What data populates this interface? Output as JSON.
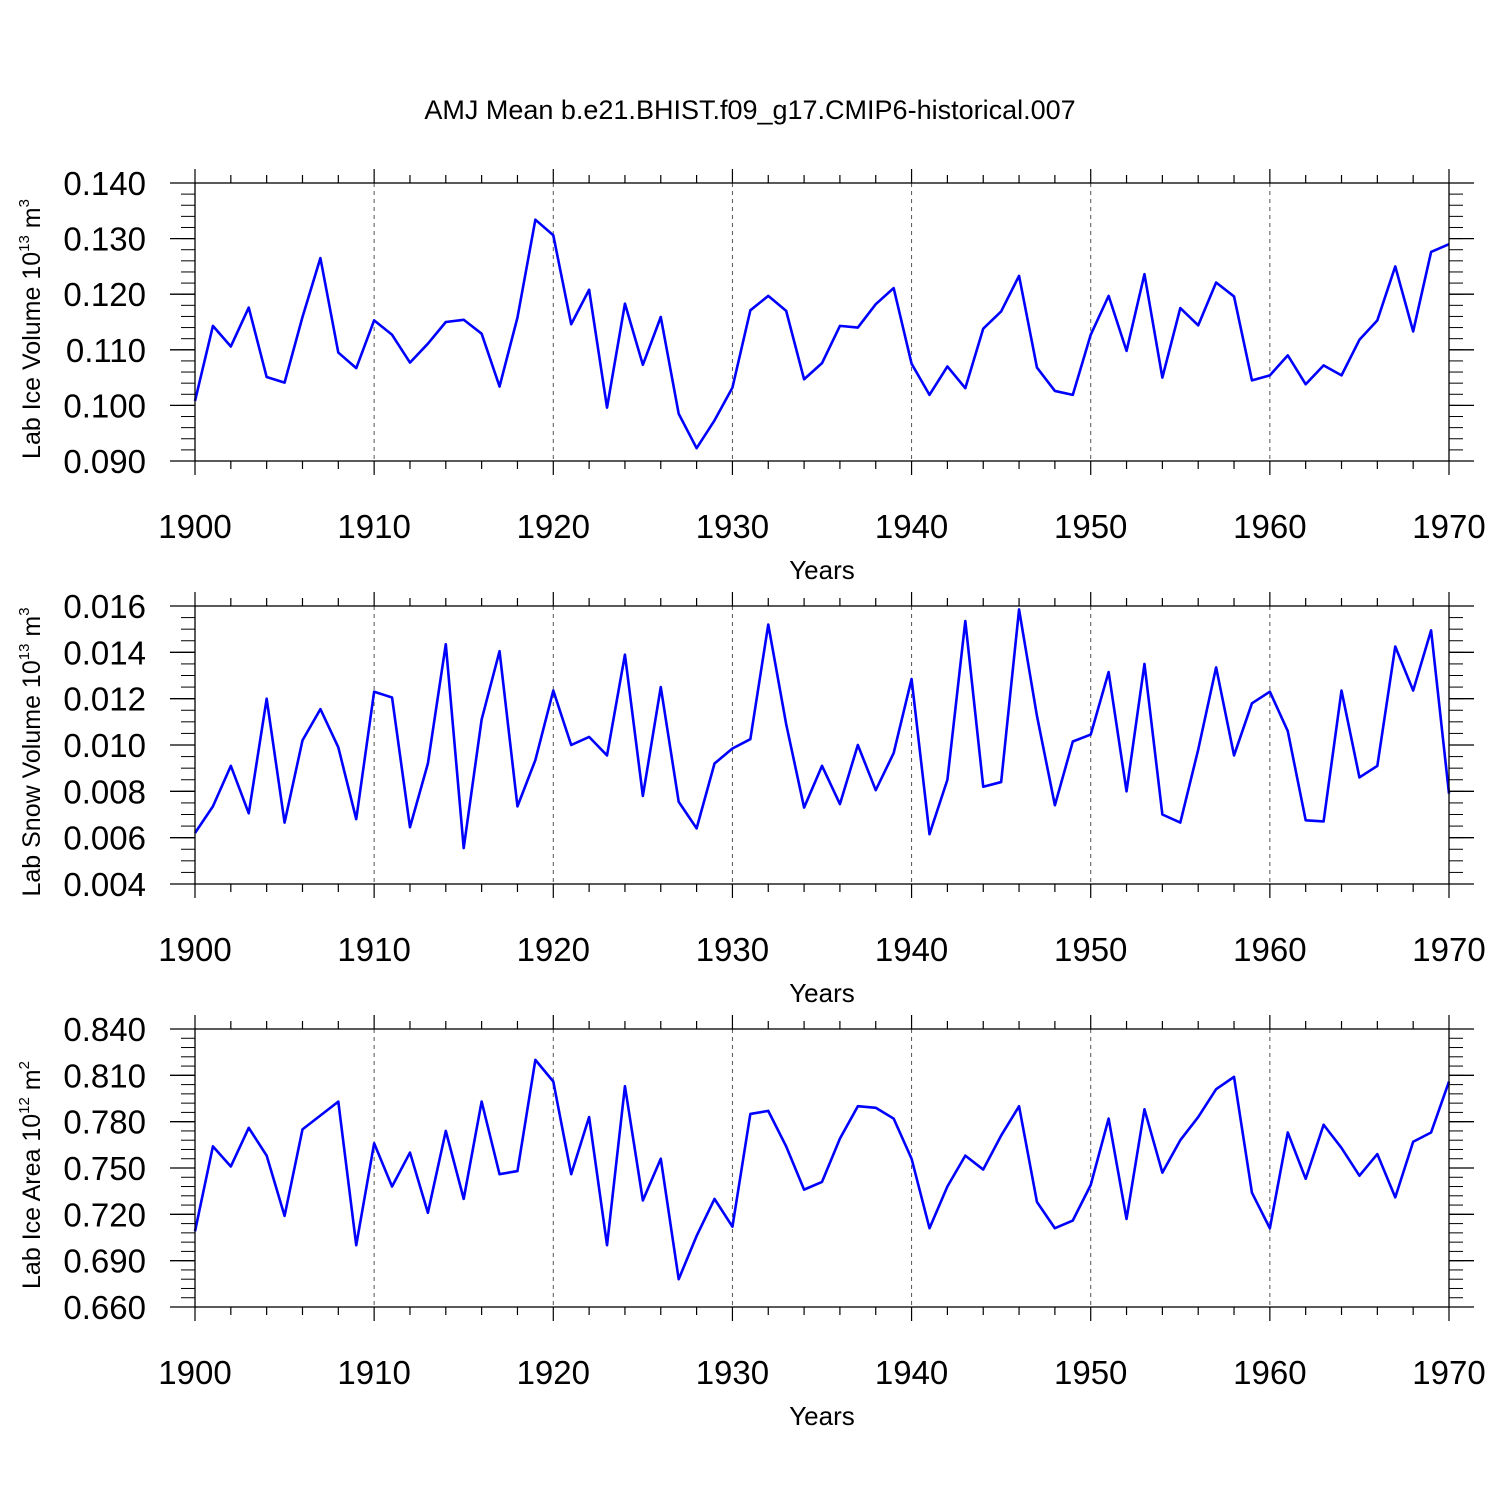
{
  "title": "AMJ Mean b.e21.BHIST.f09_g17.CMIP6-historical.007",
  "colors": {
    "line": "#0000ff",
    "axis": "#000000",
    "grid": "#555555"
  },
  "chart_data": [
    {
      "type": "line",
      "name": "ice-volume",
      "ylabel": {
        "base": "Lab Ice Volume 10",
        "exp": "13",
        "unit": " m",
        "unit_exp": "3"
      },
      "xlabel": "Years",
      "xlim": [
        1900,
        1970
      ],
      "ylim": [
        0.09,
        0.14
      ],
      "x_ticks": [
        "1900",
        "1910",
        "1920",
        "1930",
        "1940",
        "1950",
        "1960",
        "1970"
      ],
      "y_ticks": [
        "0.090",
        "0.100",
        "0.110",
        "0.120",
        "0.130",
        "0.140"
      ],
      "y_minor_step": 0.002,
      "start_year": 1900,
      "values": [
        0.1008,
        0.1143,
        0.1106,
        0.1176,
        0.1051,
        0.1041,
        0.1159,
        0.1265,
        0.1095,
        0.1067,
        0.1153,
        0.1127,
        0.1077,
        0.1111,
        0.115,
        0.1154,
        0.1129,
        0.1034,
        0.1158,
        0.1334,
        0.1306,
        0.1146,
        0.1208,
        0.0996,
        0.1183,
        0.1073,
        0.1159,
        0.0985,
        0.0923,
        0.0973,
        0.1032,
        0.1171,
        0.1197,
        0.117,
        0.1047,
        0.1076,
        0.1143,
        0.114,
        0.1182,
        0.1211,
        0.1075,
        0.1019,
        0.107,
        0.1031,
        0.1138,
        0.1169,
        0.1233,
        0.1068,
        0.1026,
        0.1019,
        0.1127,
        0.1197,
        0.1098,
        0.1236,
        0.105,
        0.1175,
        0.1144,
        0.1221,
        0.1196,
        0.1045,
        0.1054,
        0.109,
        0.1038,
        0.1072,
        0.1054,
        0.1118,
        0.1153,
        0.125,
        0.1133,
        0.1276,
        0.129
      ]
    },
    {
      "type": "line",
      "name": "snow-volume",
      "ylabel": {
        "base": "Lab Snow Volume 10",
        "exp": "13",
        "unit": " m",
        "unit_exp": "3"
      },
      "xlabel": "Years",
      "xlim": [
        1900,
        1970
      ],
      "ylim": [
        0.004,
        0.016
      ],
      "x_ticks": [
        "1900",
        "1910",
        "1920",
        "1930",
        "1940",
        "1950",
        "1960",
        "1970"
      ],
      "y_ticks": [
        "0.004",
        "0.006",
        "0.008",
        "0.010",
        "0.012",
        "0.014",
        "0.016"
      ],
      "y_minor_step": 0.0005,
      "start_year": 1900,
      "values": [
        0.0062,
        0.00735,
        0.0091,
        0.00705,
        0.012,
        0.00665,
        0.0102,
        0.01155,
        0.0099,
        0.0068,
        0.0123,
        0.01205,
        0.00645,
        0.0092,
        0.01435,
        0.00555,
        0.0111,
        0.01405,
        0.00735,
        0.00935,
        0.01235,
        0.01,
        0.01035,
        0.00955,
        0.0139,
        0.0078,
        0.0125,
        0.00755,
        0.0064,
        0.0092,
        0.00985,
        0.01025,
        0.0152,
        0.0109,
        0.0073,
        0.0091,
        0.00745,
        0.01,
        0.00805,
        0.00965,
        0.01285,
        0.00615,
        0.0085,
        0.01535,
        0.0082,
        0.0084,
        0.01585,
        0.01125,
        0.0074,
        0.01015,
        0.01045,
        0.01315,
        0.008,
        0.0135,
        0.007,
        0.00665,
        0.0098,
        0.01335,
        0.00955,
        0.0118,
        0.0123,
        0.0106,
        0.00675,
        0.0067,
        0.01235,
        0.0086,
        0.0091,
        0.01425,
        0.01235,
        0.01495,
        0.0079
      ]
    },
    {
      "type": "line",
      "name": "ice-area",
      "ylabel": {
        "base": "Lab Ice Area 10",
        "exp": "12",
        "unit": " m",
        "unit_exp": "2"
      },
      "xlabel": "Years",
      "xlim": [
        1900,
        1970
      ],
      "ylim": [
        0.66,
        0.84
      ],
      "x_ticks": [
        "1900",
        "1910",
        "1920",
        "1930",
        "1940",
        "1950",
        "1960",
        "1970"
      ],
      "y_ticks": [
        "0.660",
        "0.690",
        "0.720",
        "0.750",
        "0.780",
        "0.810",
        "0.840"
      ],
      "y_minor_step": 0.006,
      "start_year": 1900,
      "values": [
        0.709,
        0.764,
        0.751,
        0.776,
        0.758,
        0.719,
        0.775,
        0.784,
        0.793,
        0.7,
        0.766,
        0.738,
        0.76,
        0.721,
        0.774,
        0.73,
        0.793,
        0.746,
        0.748,
        0.82,
        0.806,
        0.746,
        0.783,
        0.7,
        0.803,
        0.729,
        0.756,
        0.678,
        0.706,
        0.73,
        0.712,
        0.785,
        0.787,
        0.764,
        0.736,
        0.741,
        0.769,
        0.79,
        0.789,
        0.782,
        0.756,
        0.711,
        0.738,
        0.758,
        0.749,
        0.771,
        0.79,
        0.728,
        0.711,
        0.716,
        0.739,
        0.782,
        0.717,
        0.788,
        0.747,
        0.768,
        0.783,
        0.801,
        0.809,
        0.734,
        0.711,
        0.773,
        0.743,
        0.778,
        0.763,
        0.745,
        0.759,
        0.731,
        0.767,
        0.773,
        0.806
      ]
    }
  ]
}
